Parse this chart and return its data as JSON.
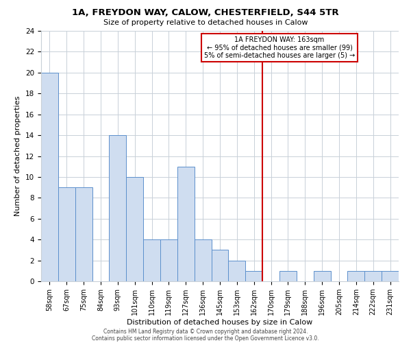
{
  "title": "1A, FREYDON WAY, CALOW, CHESTERFIELD, S44 5TR",
  "subtitle": "Size of property relative to detached houses in Calow",
  "xlabel": "Distribution of detached houses by size in Calow",
  "ylabel": "Number of detached properties",
  "bin_labels": [
    "58sqm",
    "67sqm",
    "75sqm",
    "84sqm",
    "93sqm",
    "101sqm",
    "110sqm",
    "119sqm",
    "127sqm",
    "136sqm",
    "145sqm",
    "153sqm",
    "162sqm",
    "170sqm",
    "179sqm",
    "188sqm",
    "196sqm",
    "205sqm",
    "214sqm",
    "222sqm",
    "231sqm"
  ],
  "bar_heights": [
    20,
    9,
    9,
    0,
    14,
    10,
    4,
    4,
    11,
    4,
    3,
    2,
    1,
    0,
    1,
    0,
    1,
    0,
    1,
    1,
    1
  ],
  "bar_color": "#cfddf0",
  "bar_edge_color": "#5b8fcc",
  "vline_color": "#cc0000",
  "annotation_title": "1A FREYDON WAY: 163sqm",
  "annotation_line1": "← 95% of detached houses are smaller (99)",
  "annotation_line2": "5% of semi-detached houses are larger (5) →",
  "annotation_box_edge": "#cc0000",
  "ylim": [
    0,
    24
  ],
  "yticks": [
    0,
    2,
    4,
    6,
    8,
    10,
    12,
    14,
    16,
    18,
    20,
    22,
    24
  ],
  "footer1": "Contains HM Land Registry data © Crown copyright and database right 2024.",
  "footer2": "Contains public sector information licensed under the Open Government Licence v3.0.",
  "background_color": "#ffffff",
  "grid_color": "#c8d0d8"
}
